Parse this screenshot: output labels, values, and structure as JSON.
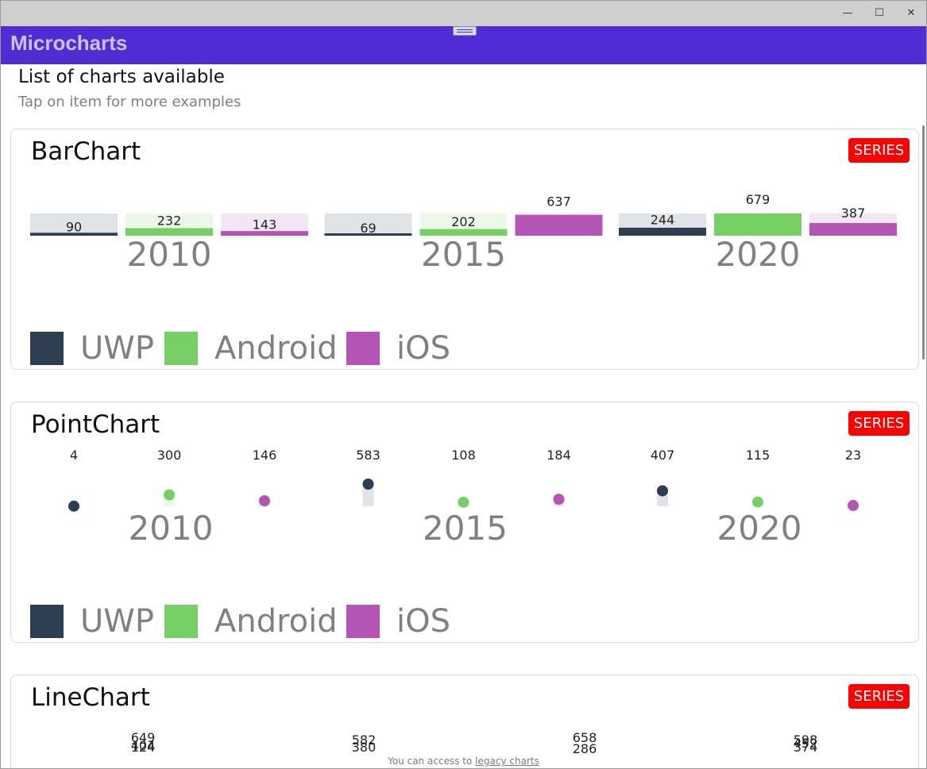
{
  "window": {
    "controls": {
      "minimize": "—",
      "maximize": "☐",
      "close": "✕"
    }
  },
  "app": {
    "title": "Microcharts"
  },
  "header": {
    "title": "List of charts available",
    "subtitle": "Tap on item for more examples"
  },
  "cards": [
    {
      "title": "BarChart",
      "badge": "SERIES"
    },
    {
      "title": "PointChart",
      "badge": "SERIES"
    },
    {
      "title": "LineChart",
      "badge": "SERIES"
    }
  ],
  "legend": [
    {
      "label": "UWP",
      "color": "#2c3e50"
    },
    {
      "label": "Android",
      "color": "#77d065"
    },
    {
      "label": "iOS",
      "color": "#b455b6"
    }
  ],
  "footer": {
    "text": "You can access to",
    "link": "legacy charts"
  },
  "chart_data": [
    {
      "type": "bar",
      "categories": [
        "2010",
        "2015",
        "2020"
      ],
      "series": [
        {
          "name": "UWP",
          "color": "#2c3e50",
          "values": [
            90,
            69,
            244
          ]
        },
        {
          "name": "Android",
          "color": "#77d065",
          "values": [
            232,
            202,
            679
          ]
        },
        {
          "name": "iOS",
          "color": "#b455b6",
          "values": [
            143,
            637,
            387
          ]
        }
      ],
      "ylim": [
        0,
        679
      ]
    },
    {
      "type": "scatter",
      "categories": [
        "2010",
        "2015",
        "2020"
      ],
      "series": [
        {
          "name": "UWP",
          "color": "#2c3e50",
          "values": [
            4,
            583,
            407
          ]
        },
        {
          "name": "Android",
          "color": "#77d065",
          "values": [
            300,
            108,
            115
          ]
        },
        {
          "name": "iOS",
          "color": "#b455b6",
          "values": [
            146,
            184,
            23
          ]
        }
      ]
    },
    {
      "type": "line",
      "labels_visible": [
        "649",
        "404",
        "124",
        "582",
        "380",
        "658",
        "286",
        "598",
        "452",
        "374"
      ]
    }
  ],
  "colors": {
    "accent": "#512bd4",
    "badge": "#ff0000",
    "titlebar": "#cfcfcf"
  }
}
